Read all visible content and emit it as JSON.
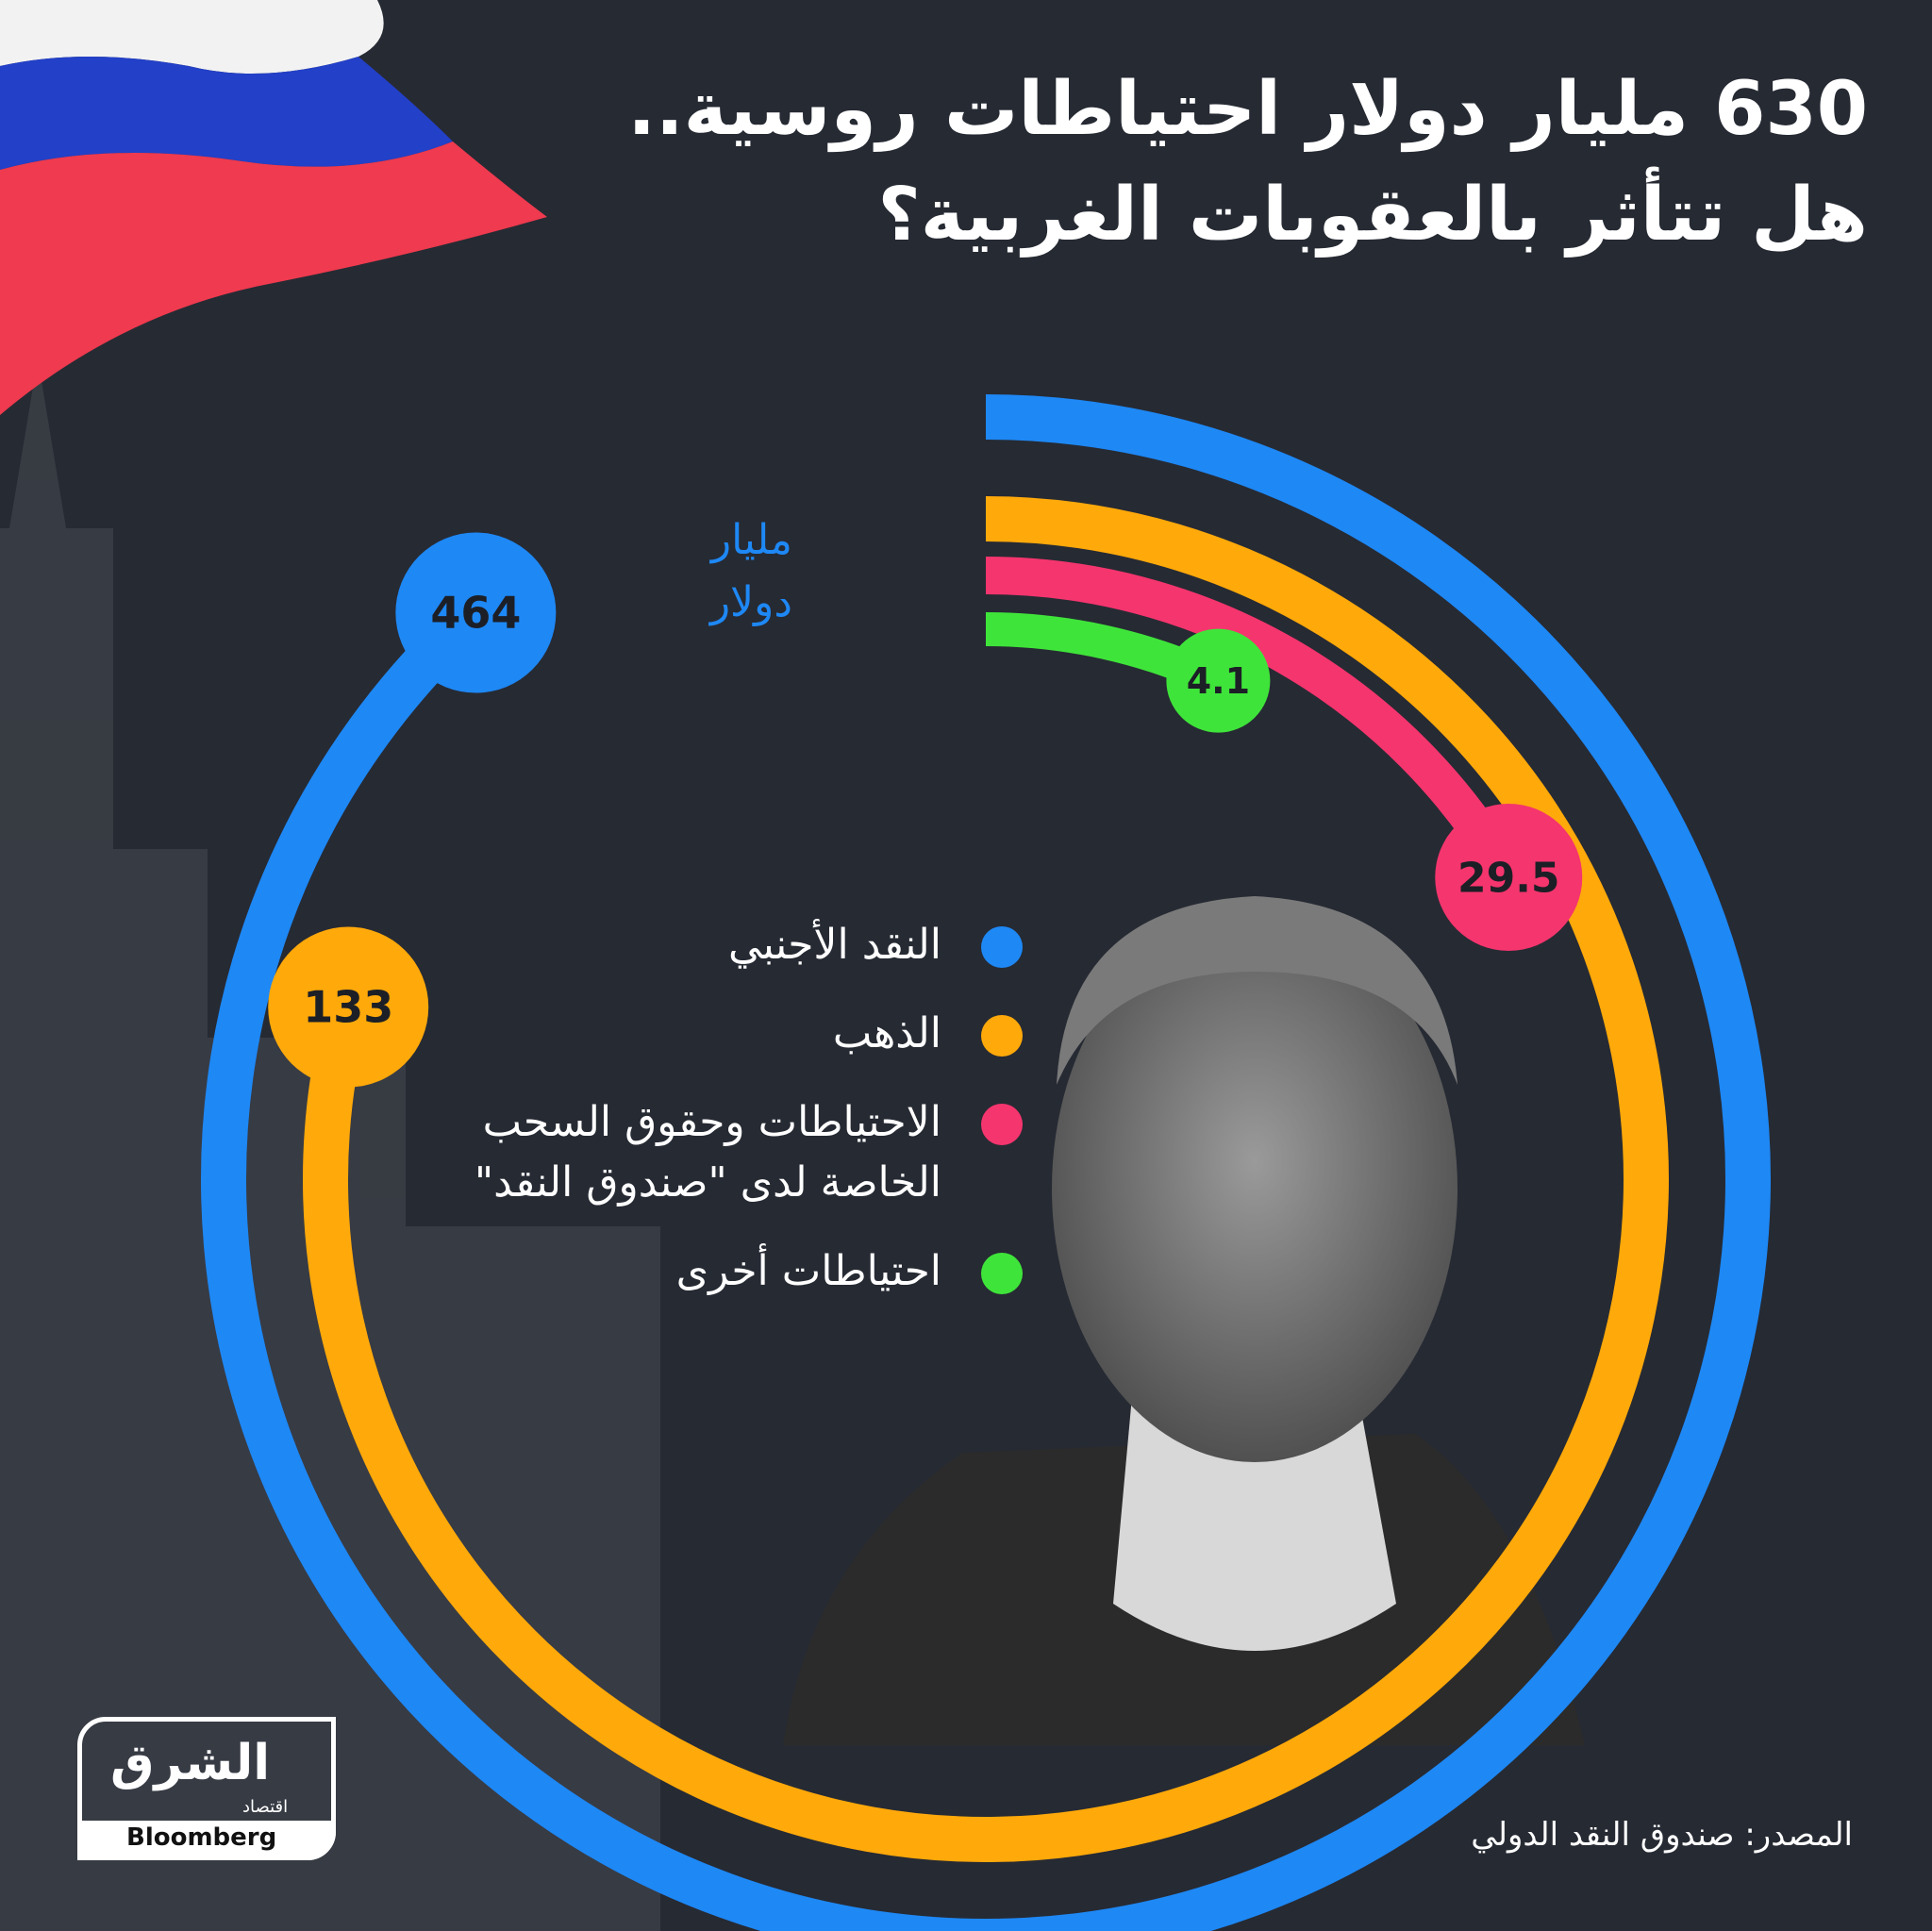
{
  "title": {
    "line1": "630 مليار دولار احتياطات روسية..",
    "line2": "هل تتأثر بالعقوبات الغربية؟"
  },
  "colors": {
    "background": "#262a33",
    "foreign_currency": "#1e88f5",
    "gold": "#ffa90a",
    "imf": "#f5356e",
    "other": "#3fe43a"
  },
  "chart_data": {
    "type": "radial-bar",
    "unit": "مليار دولار",
    "series": [
      {
        "name": "النقد الأجنبي",
        "value": 464,
        "label": "464",
        "color": "#1e88f5"
      },
      {
        "name": "الذهب",
        "value": 133,
        "label": "133",
        "color": "#ffa90a"
      },
      {
        "name": "الاحتياطات وحقوق السحب الخاصة لدى \"صندوق النقد\"",
        "value": 29.5,
        "label": "29.5",
        "color": "#f5356e"
      },
      {
        "name": "احتياطات أخرى",
        "value": 4.1,
        "label": "4.1",
        "color": "#3fe43a"
      }
    ]
  },
  "unit_label": {
    "line1": "مليار",
    "line2": "دولار"
  },
  "legend": [
    {
      "label": "النقد الأجنبي",
      "color": "#1e88f5"
    },
    {
      "label": "الذهب",
      "color": "#ffa90a"
    },
    {
      "label": "الاحتياطات وحقوق السحب",
      "label2": "الخاصة لدى \"صندوق النقد\"",
      "color": "#f5356e"
    },
    {
      "label": "احتياطات أخرى",
      "color": "#3fe43a"
    }
  ],
  "source": "المصدر: صندوق النقد الدولي",
  "logo": {
    "main": "الشرق",
    "sub": "اقتصاد",
    "brand": "Bloomberg"
  },
  "decor": {
    "flag": "russian-flag",
    "portrait": "portrait-photo",
    "background": "moscow-skyline-photo"
  }
}
